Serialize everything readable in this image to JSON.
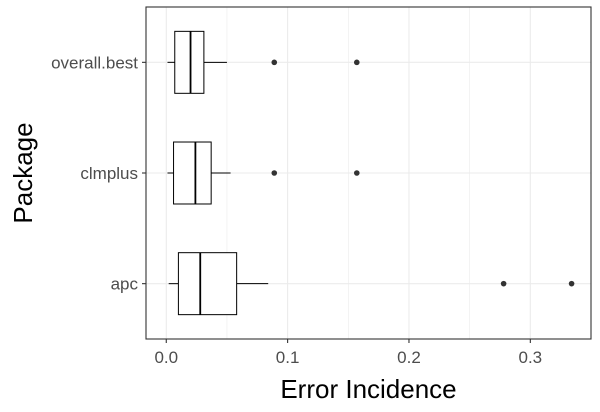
{
  "chart_data": {
    "type": "boxplot",
    "orientation": "horizontal",
    "xlabel": "Error Incidence",
    "ylabel": "Package",
    "xlim": [
      -0.0167,
      0.35
    ],
    "xticks": [
      0.0,
      0.1,
      0.2,
      0.3
    ],
    "xtick_labels": [
      "0.0",
      "0.1",
      "0.2",
      "0.3"
    ],
    "categories": [
      "apc",
      "clmplus",
      "overall.best"
    ],
    "grid": true,
    "legend": "none",
    "colors": {
      "box_fill": "#ffffff",
      "box_stroke": "#000000",
      "grid": "#ebebeb",
      "panel_border": "#333333",
      "outlier": "#333333",
      "tick_label": "#4d4d4d"
    },
    "boxes": [
      {
        "category": "apc",
        "whisker_low": 0.002,
        "q1": 0.01,
        "median": 0.028,
        "q3": 0.058,
        "whisker_high": 0.084,
        "outliers": [
          0.278,
          0.334
        ]
      },
      {
        "category": "clmplus",
        "whisker_low": 0.001,
        "q1": 0.006,
        "median": 0.024,
        "q3": 0.037,
        "whisker_high": 0.053,
        "outliers": [
          0.089,
          0.157
        ]
      },
      {
        "category": "overall.best",
        "whisker_low": 0.001,
        "q1": 0.007,
        "median": 0.02,
        "q3": 0.031,
        "whisker_high": 0.05,
        "outliers": [
          0.089,
          0.157
        ]
      }
    ]
  }
}
